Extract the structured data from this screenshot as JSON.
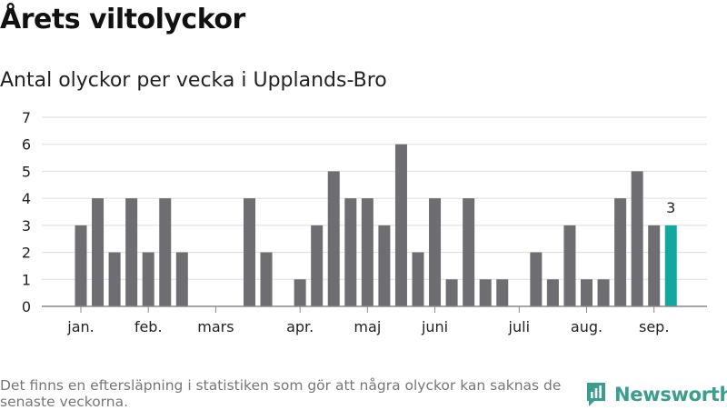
{
  "title": "Årets viltolyckor",
  "subtitle": "Antal olyckor per vecka i Upplands-Bro",
  "footnote": "Det finns en eftersläpning i statistiken som gör att några olyckor kan saknas de senaste veckorna.",
  "brand": {
    "name": "Newsworthy",
    "icon": "newsworthy-logo-icon",
    "color": "#3a9e8e"
  },
  "colors": {
    "bar": "#6d6d72",
    "highlight": "#12a89d",
    "grid": "#dddddd",
    "axis": "#888888"
  },
  "chart_data": {
    "type": "bar",
    "ylim": [
      0,
      7
    ],
    "yticks": [
      0,
      1,
      2,
      3,
      4,
      5,
      6,
      7
    ],
    "grid": true,
    "values": [
      3,
      4,
      2,
      4,
      2,
      4,
      2,
      0,
      0,
      0,
      4,
      2,
      0,
      1,
      3,
      5,
      4,
      4,
      3,
      6,
      2,
      4,
      1,
      4,
      1,
      1,
      0,
      2,
      1,
      3,
      1,
      1,
      4,
      5,
      3,
      3
    ],
    "highlight_index": 35,
    "data_labels": [
      {
        "index": 35,
        "text": "3"
      }
    ],
    "month_labels": [
      {
        "label": "jan.",
        "week": 1
      },
      {
        "label": "feb.",
        "week": 5
      },
      {
        "label": "mars",
        "week": 9
      },
      {
        "label": "apr.",
        "week": 14
      },
      {
        "label": "maj",
        "week": 18
      },
      {
        "label": "juni",
        "week": 22
      },
      {
        "label": "juli",
        "week": 27
      },
      {
        "label": "aug.",
        "week": 31
      },
      {
        "label": "sep.",
        "week": 35
      }
    ]
  }
}
